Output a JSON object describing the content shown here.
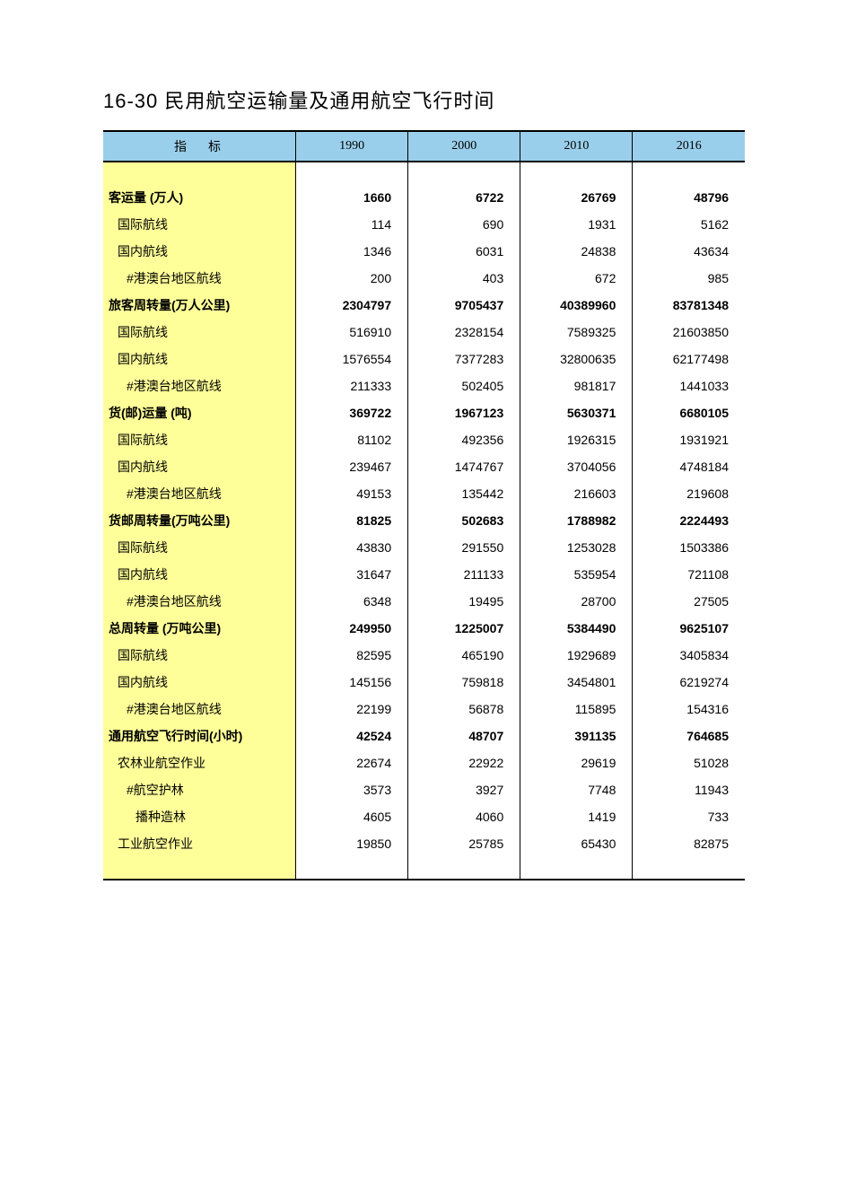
{
  "title": "16-30  民用航空运输量及通用航空飞行时间",
  "table": {
    "header_bg": "#9acfeb",
    "label_bg": "#ffff99",
    "value_bg": "#ffffff",
    "border_color": "#000000",
    "font_size_body": 14,
    "font_size_title": 22,
    "indicator_header": "指标",
    "year_headers": [
      "1990",
      "2000",
      "2010",
      "2016"
    ],
    "col_widths_pct": [
      30,
      17.5,
      17.5,
      17.5,
      17.5
    ],
    "spacer_row": {
      "label": "",
      "values": [
        "",
        "",
        "",
        ""
      ]
    },
    "rows": [
      {
        "label": "客运量    (万人)",
        "values": [
          "1660",
          "6722",
          "26769",
          "48796"
        ],
        "bold": true,
        "indent": 0
      },
      {
        "label": "国际航线",
        "values": [
          "114",
          "690",
          "1931",
          "5162"
        ],
        "bold": false,
        "indent": 1
      },
      {
        "label": "国内航线",
        "values": [
          "1346",
          "6031",
          "24838",
          "43634"
        ],
        "bold": false,
        "indent": 1
      },
      {
        "label": "#港澳台地区航线",
        "values": [
          "200",
          "403",
          "672",
          "985"
        ],
        "bold": false,
        "indent": 2
      },
      {
        "label": "旅客周转量(万人公里)",
        "values": [
          "2304797",
          "9705437",
          "40389960",
          "83781348"
        ],
        "bold": true,
        "indent": 0
      },
      {
        "label": "国际航线",
        "values": [
          "516910",
          "2328154",
          "7589325",
          "21603850"
        ],
        "bold": false,
        "indent": 1
      },
      {
        "label": "国内航线",
        "values": [
          "1576554",
          "7377283",
          "32800635",
          "62177498"
        ],
        "bold": false,
        "indent": 1
      },
      {
        "label": "#港澳台地区航线",
        "values": [
          "211333",
          "502405",
          "981817",
          "1441033"
        ],
        "bold": false,
        "indent": 2
      },
      {
        "label": "货(邮)运量    (吨)",
        "values": [
          "369722",
          "1967123",
          "5630371",
          "6680105"
        ],
        "bold": true,
        "indent": 0
      },
      {
        "label": "国际航线",
        "values": [
          "81102",
          "492356",
          "1926315",
          "1931921"
        ],
        "bold": false,
        "indent": 1
      },
      {
        "label": "国内航线",
        "values": [
          "239467",
          "1474767",
          "3704056",
          "4748184"
        ],
        "bold": false,
        "indent": 1
      },
      {
        "label": "#港澳台地区航线",
        "values": [
          "49153",
          "135442",
          "216603",
          "219608"
        ],
        "bold": false,
        "indent": 2
      },
      {
        "label": "货邮周转量(万吨公里)",
        "values": [
          "81825",
          "502683",
          "1788982",
          "2224493"
        ],
        "bold": true,
        "indent": 0
      },
      {
        "label": "国际航线",
        "values": [
          "43830",
          "291550",
          "1253028",
          "1503386"
        ],
        "bold": false,
        "indent": 1
      },
      {
        "label": "国内航线",
        "values": [
          "31647",
          "211133",
          "535954",
          "721108"
        ],
        "bold": false,
        "indent": 1
      },
      {
        "label": "#港澳台地区航线",
        "values": [
          "6348",
          "19495",
          "28700",
          "27505"
        ],
        "bold": false,
        "indent": 2
      },
      {
        "label": "总周转量 (万吨公里)",
        "values": [
          "249950",
          "1225007",
          "5384490",
          "9625107"
        ],
        "bold": true,
        "indent": 0
      },
      {
        "label": "国际航线",
        "values": [
          "82595",
          "465190",
          "1929689",
          "3405834"
        ],
        "bold": false,
        "indent": 1
      },
      {
        "label": "国内航线",
        "values": [
          "145156",
          "759818",
          "3454801",
          "6219274"
        ],
        "bold": false,
        "indent": 1
      },
      {
        "label": "#港澳台地区航线",
        "values": [
          "22199",
          "56878",
          "115895",
          "154316"
        ],
        "bold": false,
        "indent": 2
      },
      {
        "label": "通用航空飞行时间(小时)",
        "values": [
          "42524",
          "48707",
          "391135",
          "764685"
        ],
        "bold": true,
        "indent": 0
      },
      {
        "label": "农林业航空作业",
        "values": [
          "22674",
          "22922",
          "29619",
          "51028"
        ],
        "bold": false,
        "indent": 1
      },
      {
        "label": "#航空护林",
        "values": [
          "3573",
          "3927",
          "7748",
          "11943"
        ],
        "bold": false,
        "indent": 2
      },
      {
        "label": "播种造林",
        "values": [
          "4605",
          "4060",
          "1419",
          "733"
        ],
        "bold": false,
        "indent": 3
      },
      {
        "label": "工业航空作业",
        "values": [
          "19850",
          "25785",
          "65430",
          "82875"
        ],
        "bold": false,
        "indent": 1
      }
    ]
  }
}
